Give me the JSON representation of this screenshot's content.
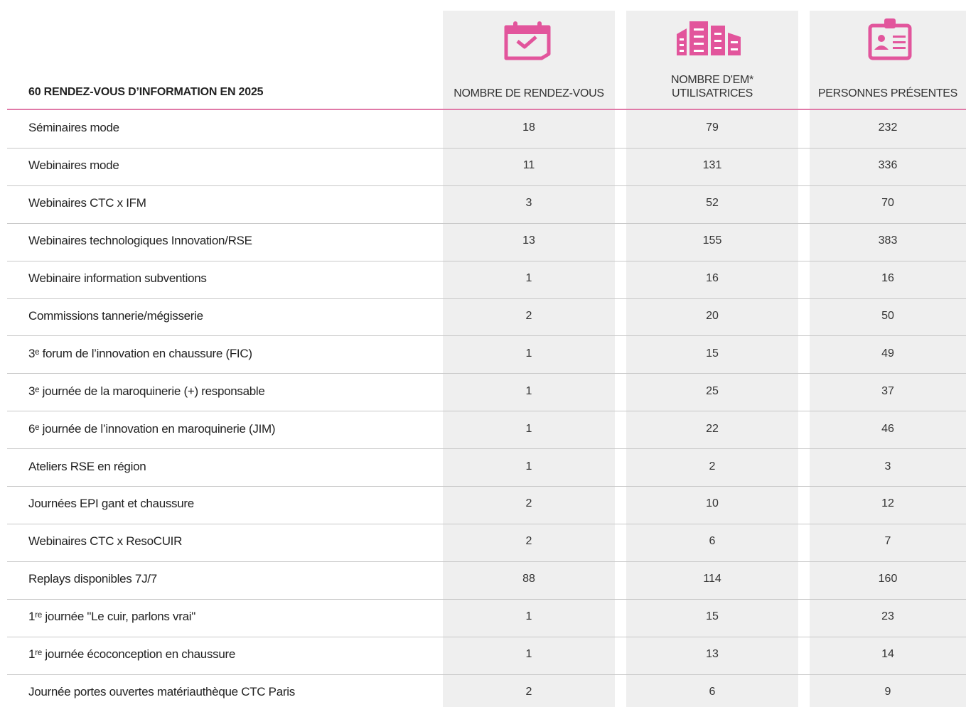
{
  "table": {
    "title": "60 RENDEZ-VOUS D’INFORMATION EN 2025",
    "columns": [
      "NOMBRE DE RENDEZ-VOUS",
      "NOMBRE D'EM*\nUTILISATRICES",
      "PERSONNES PRÉSENTES"
    ],
    "rows": [
      [
        "Séminaires mode",
        18,
        79,
        232
      ],
      [
        "Webinaires mode",
        11,
        131,
        336
      ],
      [
        "Webinaires CTC x IFM",
        3,
        52,
        70
      ],
      [
        "Webinaires technologiques Innovation/RSE",
        13,
        155,
        383
      ],
      [
        "Webinaire information subventions",
        1,
        16,
        16
      ],
      [
        "Commissions tannerie/mégisserie",
        2,
        20,
        50
      ],
      [
        "3ᵉ forum de l’innovation en chaussure (FIC)",
        1,
        15,
        49
      ],
      [
        "3ᵉ journée de la maroquinerie (+) responsable",
        1,
        25,
        37
      ],
      [
        "6ᵉ journée de l’innovation en maroquinerie (JIM)",
        1,
        22,
        46
      ],
      [
        "Ateliers RSE en région",
        1,
        2,
        3
      ],
      [
        "Journées EPI gant et chaussure",
        2,
        10,
        12
      ],
      [
        "Webinaires CTC x ResoCUIR",
        2,
        6,
        7
      ],
      [
        "Replays disponibles 7J/7",
        88,
        114,
        160
      ],
      [
        "1ʳᵉ journée \"Le cuir, parlons vrai\"",
        1,
        15,
        23
      ],
      [
        "1ʳᵉ journée écoconception en chaussure",
        1,
        13,
        14
      ],
      [
        "Journée portes ouvertes matériauthèque CTC Paris",
        2,
        6,
        9
      ]
    ]
  }
}
